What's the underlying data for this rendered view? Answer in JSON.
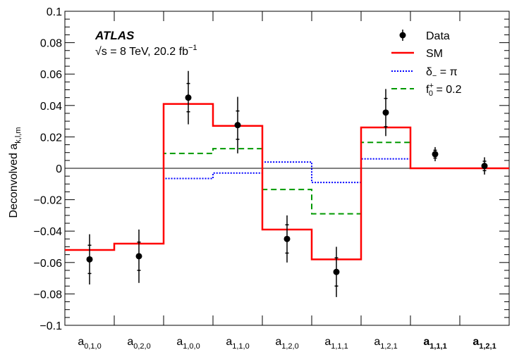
{
  "chart_data": {
    "type": "histogram",
    "ylabel": "Deconvolved a",
    "ylabel_subscript": "k,l,m",
    "ylim": [
      -0.1,
      0.1
    ],
    "y_ticks": [
      -0.1,
      -0.08,
      -0.06,
      -0.04,
      -0.02,
      0,
      0.02,
      0.04,
      0.06,
      0.08,
      0.1
    ],
    "y_tick_labels": [
      "−0.1",
      "−0.08",
      "−0.06",
      "−0.04",
      "−0.02",
      "0",
      "0.02",
      "0.04",
      "0.06",
      "0.08",
      "0.1"
    ],
    "categories": [
      {
        "base": "a",
        "sub": "0,1,0",
        "bold": false
      },
      {
        "base": "a",
        "sub": "0,2,0",
        "bold": false
      },
      {
        "base": "a",
        "sub": "1,0,0",
        "bold": false
      },
      {
        "base": "a",
        "sub": "1,1,0",
        "bold": false
      },
      {
        "base": "a",
        "sub": "1,2,0",
        "bold": false
      },
      {
        "base": "a",
        "sub": "1,1,1",
        "bold": false
      },
      {
        "base": "a",
        "sub": "1,2,1",
        "bold": false
      },
      {
        "base": "a",
        "sub": "1,1,1",
        "bold": true
      },
      {
        "base": "a",
        "sub": "1,2,1",
        "bold": true
      }
    ],
    "zero_line": true,
    "series": [
      {
        "name": "SM",
        "style": "step",
        "color": "#ff0000",
        "dash": "solid",
        "values": [
          -0.052,
          -0.048,
          0.041,
          0.027,
          -0.039,
          -0.058,
          0.026,
          0.0,
          0.0
        ]
      },
      {
        "name": "δ",
        "name_sub": "−",
        "name_suffix": " = π",
        "style": "step",
        "color": "#0000ff",
        "dash": "dotted",
        "values": [
          -0.052,
          -0.048,
          -0.0065,
          -0.003,
          0.004,
          -0.009,
          0.006,
          0.0,
          0.0
        ]
      },
      {
        "name": "f",
        "name_sub": "0",
        "name_sup": "+",
        "name_suffix": " = 0.2",
        "style": "step",
        "color": "#009900",
        "dash": "dashed",
        "values": [
          -0.052,
          -0.048,
          0.0095,
          0.0125,
          -0.0135,
          -0.029,
          0.0165,
          0.0,
          0.0
        ]
      },
      {
        "name": "Data",
        "style": "points",
        "color": "#000000",
        "values": [
          -0.058,
          -0.056,
          0.045,
          0.0275,
          -0.045,
          -0.066,
          0.0355,
          0.009,
          0.0015
        ],
        "err_inner": [
          0.009,
          0.009,
          0.009,
          0.009,
          0.009,
          0.009,
          0.009,
          0.0025,
          0.003
        ],
        "err_outer": [
          0.016,
          0.017,
          0.017,
          0.018,
          0.015,
          0.016,
          0.015,
          0.0045,
          0.0055
        ]
      }
    ],
    "legend_position": "top-right",
    "annotation_title": "ATLAS",
    "annotation_energy": "√s = 8 TeV, 20.2 fb",
    "annotation_energy_sup": "−1"
  }
}
